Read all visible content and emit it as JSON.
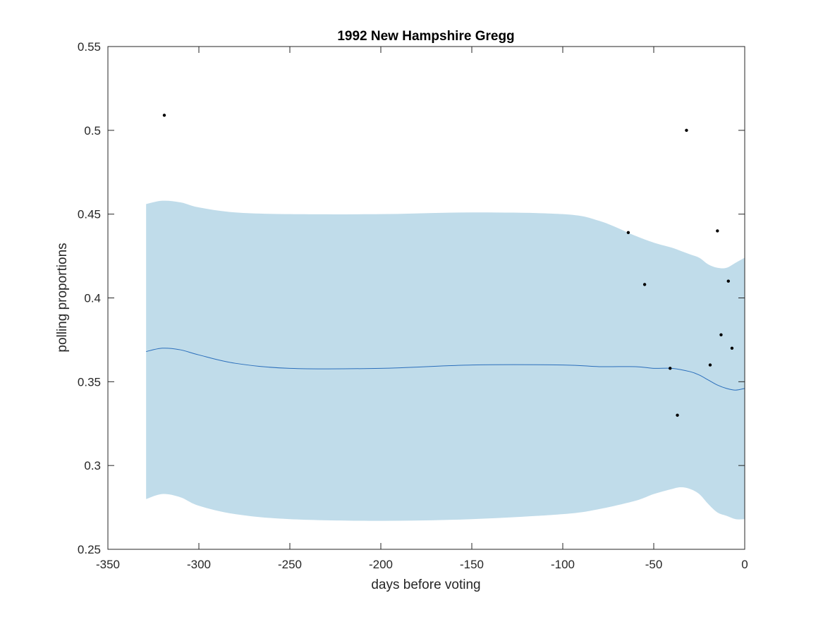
{
  "chart_data": {
    "type": "line",
    "title": "1992 New Hampshire Gregg",
    "xlabel": "days before voting",
    "ylabel": "polling proportions",
    "xlim": [
      -350,
      0
    ],
    "ylim": [
      0.25,
      0.55
    ],
    "xticks": [
      -350,
      -300,
      -250,
      -200,
      -150,
      -100,
      -50,
      0
    ],
    "yticks": [
      0.25,
      0.3,
      0.35,
      0.4,
      0.45,
      0.5,
      0.55
    ],
    "xtick_labels": [
      "-350",
      "-300",
      "-250",
      "-200",
      "-150",
      "-100",
      "-50",
      "0"
    ],
    "ytick_labels": [
      "0.25",
      "0.3",
      "0.35",
      "0.4",
      "0.45",
      "0.5",
      "0.55"
    ],
    "grid": false,
    "series": [
      {
        "kind": "band",
        "color": "#c0dcea",
        "x": [
          -329,
          -320,
          -310,
          -300,
          -280,
          -250,
          -200,
          -150,
          -100,
          -80,
          -60,
          -50,
          -40,
          -35,
          -30,
          -25,
          -20,
          -15,
          -10,
          -5,
          0
        ],
        "upper": [
          0.456,
          0.458,
          0.457,
          0.454,
          0.451,
          0.45,
          0.45,
          0.451,
          0.45,
          0.446,
          0.437,
          0.433,
          0.43,
          0.428,
          0.426,
          0.424,
          0.42,
          0.418,
          0.418,
          0.421,
          0.424
        ],
        "lower": [
          0.28,
          0.283,
          0.281,
          0.276,
          0.271,
          0.268,
          0.267,
          0.268,
          0.271,
          0.274,
          0.279,
          0.283,
          0.286,
          0.287,
          0.286,
          0.283,
          0.277,
          0.272,
          0.27,
          0.268,
          0.268
        ]
      },
      {
        "kind": "line",
        "color": "#2a6ebb",
        "x": [
          -329,
          -320,
          -310,
          -300,
          -280,
          -250,
          -200,
          -150,
          -100,
          -80,
          -60,
          -50,
          -40,
          -30,
          -25,
          -20,
          -15,
          -10,
          -5,
          0
        ],
        "y": [
          0.368,
          0.37,
          0.369,
          0.366,
          0.361,
          0.358,
          0.358,
          0.36,
          0.36,
          0.359,
          0.359,
          0.358,
          0.358,
          0.356,
          0.354,
          0.351,
          0.348,
          0.346,
          0.345,
          0.346
        ]
      },
      {
        "kind": "scatter",
        "color": "#000000",
        "x": [
          -319,
          -64,
          -55,
          -41,
          -37,
          -32,
          -19,
          -15,
          -13,
          -9,
          -7
        ],
        "y": [
          0.509,
          0.439,
          0.408,
          0.358,
          0.33,
          0.5,
          0.36,
          0.44,
          0.378,
          0.41,
          0.37
        ]
      }
    ]
  }
}
